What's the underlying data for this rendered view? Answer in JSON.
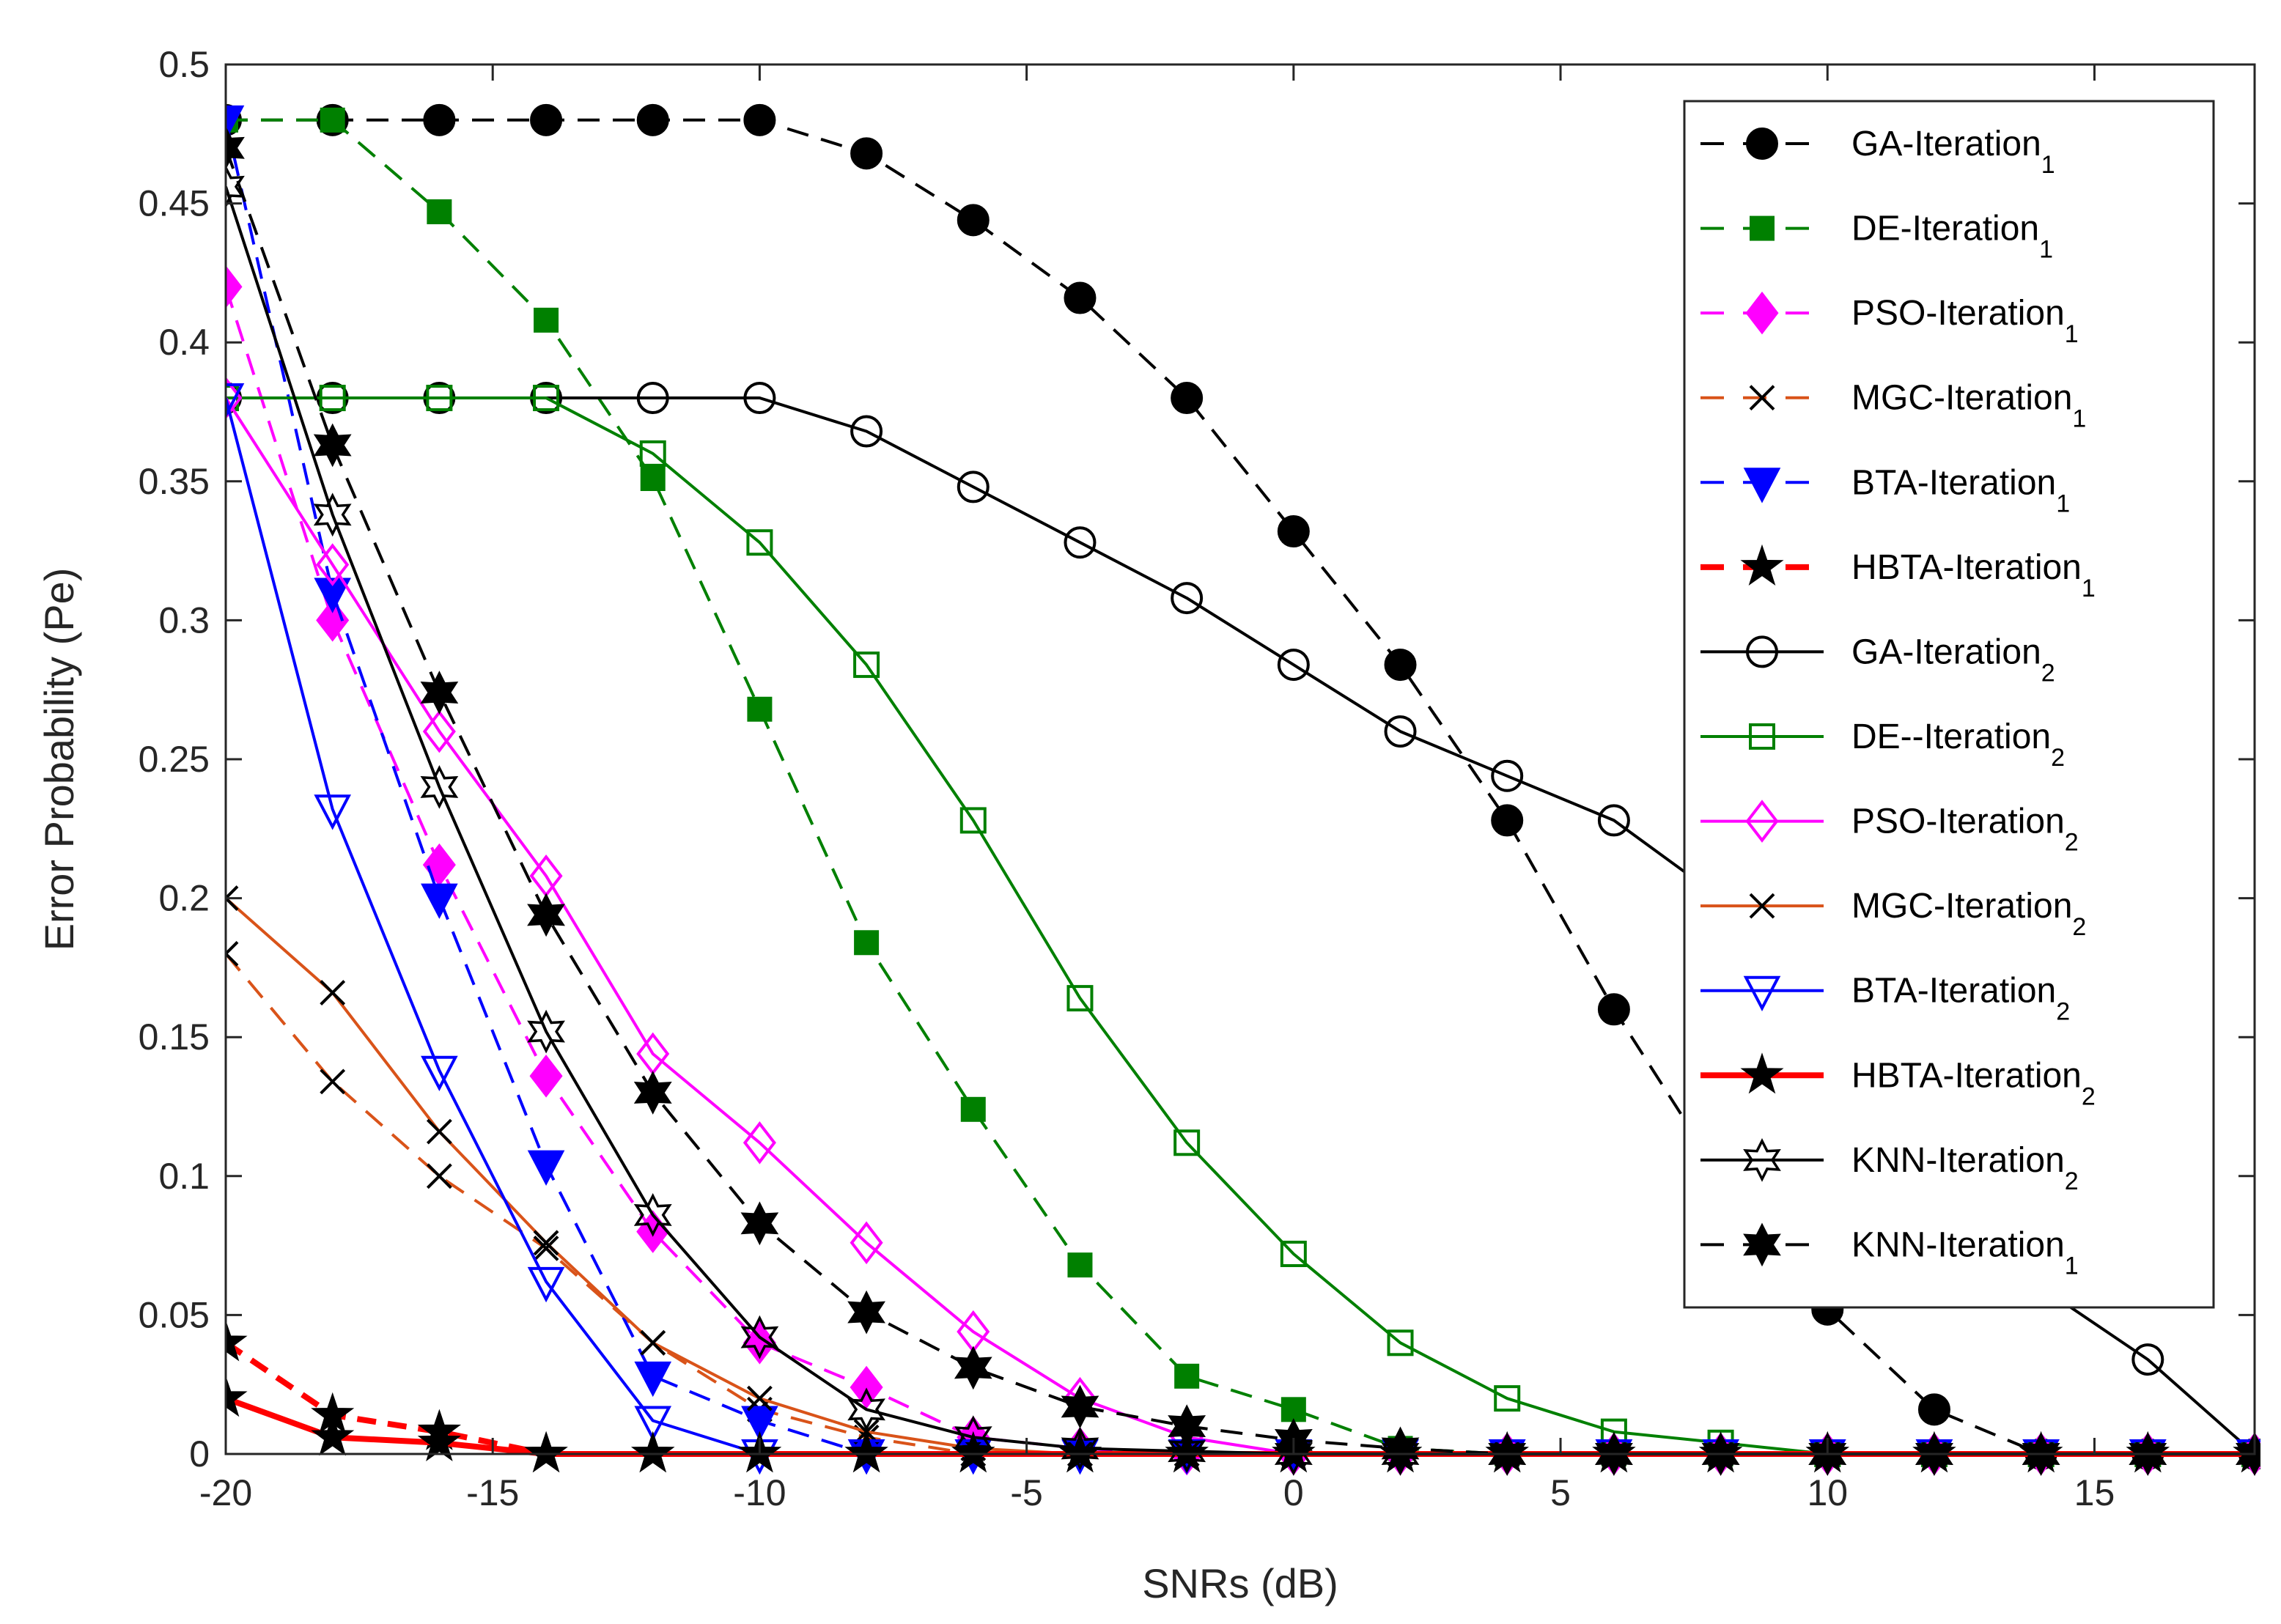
{
  "chart_data": {
    "type": "line",
    "xlabel": "SNRs (dB)",
    "ylabel": "Error Probability (Pe)",
    "xlim": [
      -20,
      18
    ],
    "ylim": [
      0,
      0.5
    ],
    "x_ticks": [
      -20,
      -15,
      -10,
      -5,
      0,
      5,
      10,
      15
    ],
    "x_tick_labels": [
      "-20",
      "-15",
      "-10",
      "-5",
      "0",
      "5",
      "10",
      "15"
    ],
    "y_ticks": [
      0,
      0.05,
      0.1,
      0.15,
      0.2,
      0.25,
      0.3,
      0.35,
      0.4,
      0.45,
      0.5
    ],
    "y_tick_labels": [
      "0",
      "0.05",
      "0.1",
      "0.15",
      "0.2",
      "0.25",
      "0.3",
      "0.35",
      "0.4",
      "0.45",
      "0.5"
    ],
    "grid": false,
    "legend_position": "top-right",
    "x": [
      -20,
      -18,
      -16,
      -14,
      -12,
      -10,
      -8,
      -6,
      -4,
      -2,
      0,
      2,
      4,
      6,
      8,
      10,
      12,
      14,
      16,
      18
    ],
    "series": [
      {
        "name": "GA-Iteration",
        "sub": "1",
        "color": "#000000",
        "dash": "dashed",
        "marker": "circle-filled",
        "values": [
          0.48,
          0.48,
          0.48,
          0.48,
          0.48,
          0.48,
          0.468,
          0.444,
          0.416,
          0.38,
          0.332,
          0.284,
          0.228,
          0.16,
          0.1,
          0.052,
          0.016,
          0,
          0,
          0
        ]
      },
      {
        "name": "DE-Iteration",
        "sub": "1",
        "color": "#008000",
        "dash": "dashed",
        "marker": "square-filled",
        "values": [
          0.48,
          0.48,
          0.447,
          0.408,
          0.351,
          0.268,
          0.184,
          0.124,
          0.068,
          0.028,
          0.016,
          0.002,
          0,
          0,
          0,
          0,
          0,
          0,
          0,
          0
        ]
      },
      {
        "name": "PSO-Iteration",
        "sub": "1",
        "color": "#ff00ff",
        "dash": "dashed",
        "marker": "diamond-filled",
        "values": [
          0.42,
          0.3,
          0.212,
          0.136,
          0.08,
          0.04,
          0.024,
          0.006,
          0.002,
          0,
          0,
          0,
          0,
          0,
          0,
          0,
          0,
          0,
          0,
          0
        ]
      },
      {
        "name": "MGC-Iteration",
        "sub": "1",
        "color": "#d95319",
        "dash": "dashed",
        "marker": "x",
        "values": [
          0.18,
          0.134,
          0.1,
          0.074,
          0.04,
          0.016,
          0.006,
          0,
          0,
          0,
          0,
          0,
          0,
          0,
          0,
          0,
          0,
          0,
          0,
          0
        ]
      },
      {
        "name": "BTA-Iteration",
        "sub": "1",
        "color": "#0000ff",
        "dash": "dashed",
        "marker": "triangle-down-filled",
        "values": [
          0.48,
          0.31,
          0.2,
          0.104,
          0.028,
          0.012,
          0,
          0,
          0,
          0,
          0,
          0,
          0,
          0,
          0,
          0,
          0,
          0,
          0,
          0
        ]
      },
      {
        "name": "HBTA-Iteration",
        "sub": "1",
        "color": "#ff0000",
        "dash": "dashed",
        "marker": "pentagram-filled",
        "thick": true,
        "values": [
          0.04,
          0.014,
          0.008,
          0,
          0,
          0,
          0,
          0,
          0,
          0,
          0,
          0,
          0,
          0,
          0,
          0,
          0,
          0,
          0,
          0
        ]
      },
      {
        "name": "GA-Iteration",
        "sub": "2",
        "color": "#000000",
        "dash": "solid",
        "marker": "circle-open",
        "values": [
          0.38,
          0.38,
          0.38,
          0.38,
          0.38,
          0.38,
          0.368,
          0.348,
          0.328,
          0.308,
          0.284,
          0.26,
          0.244,
          0.228,
          0.2,
          0.15,
          0.1,
          0.06,
          0.034,
          0
        ]
      },
      {
        "name": "DE--Iteration",
        "sub": "2",
        "color": "#008000",
        "dash": "solid",
        "marker": "square-open",
        "values": [
          0.38,
          0.38,
          0.38,
          0.38,
          0.36,
          0.328,
          0.284,
          0.228,
          0.164,
          0.112,
          0.072,
          0.04,
          0.02,
          0.008,
          0.004,
          0,
          0,
          0,
          0,
          0
        ]
      },
      {
        "name": "PSO-Iteration",
        "sub": "2",
        "color": "#ff00ff",
        "dash": "solid",
        "marker": "diamond-open",
        "values": [
          0.38,
          0.32,
          0.26,
          0.208,
          0.144,
          0.112,
          0.076,
          0.044,
          0.02,
          0.006,
          0,
          0,
          0,
          0,
          0,
          0,
          0,
          0,
          0,
          0
        ]
      },
      {
        "name": "MGC-Iteration",
        "sub": "2",
        "color": "#d95319",
        "dash": "solid",
        "marker": "x",
        "values": [
          0.2,
          0.166,
          0.116,
          0.076,
          0.04,
          0.02,
          0.008,
          0.002,
          0,
          0,
          0,
          0,
          0,
          0,
          0,
          0,
          0,
          0,
          0,
          0
        ]
      },
      {
        "name": "BTA-Iteration",
        "sub": "2",
        "color": "#0000ff",
        "dash": "solid",
        "marker": "triangle-down-open",
        "values": [
          0.38,
          0.232,
          0.138,
          0.062,
          0.012,
          0,
          0,
          0,
          0,
          0,
          0,
          0,
          0,
          0,
          0,
          0,
          0,
          0,
          0,
          0
        ]
      },
      {
        "name": "HBTA-Iteration",
        "sub": "2",
        "color": "#ff0000",
        "dash": "solid",
        "marker": "pentagram-filled",
        "thick": true,
        "values": [
          0.02,
          0.006,
          0.004,
          0,
          0,
          0,
          0,
          0,
          0,
          0,
          0,
          0,
          0,
          0,
          0,
          0,
          0,
          0,
          0,
          0
        ]
      },
      {
        "name": "KNN-Iteration",
        "sub": "2",
        "color": "#000000",
        "dash": "solid",
        "marker": "hexagram-open",
        "values": [
          0.456,
          0.338,
          0.24,
          0.152,
          0.086,
          0.042,
          0.016,
          0.006,
          0.002,
          0.001,
          0,
          0,
          0,
          0,
          0,
          0,
          0,
          0,
          0,
          0
        ]
      },
      {
        "name": "KNN-Iteration",
        "sub": "1",
        "color": "#000000",
        "dash": "dashed",
        "marker": "hexagram-filled",
        "values": [
          0.47,
          0.363,
          0.274,
          0.194,
          0.13,
          0.083,
          0.051,
          0.031,
          0.017,
          0.01,
          0.005,
          0.002,
          0,
          0,
          0,
          0,
          0,
          0,
          0,
          0
        ]
      }
    ]
  }
}
